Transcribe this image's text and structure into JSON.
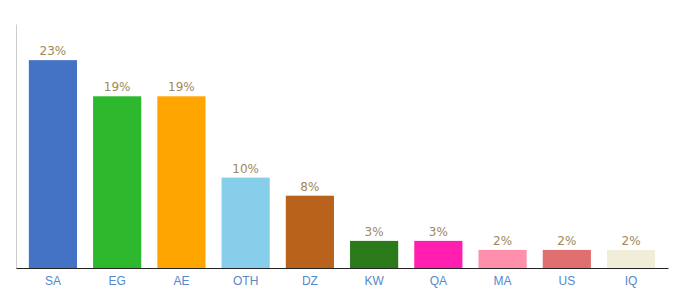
{
  "chart_data": {
    "type": "bar",
    "categories": [
      "SA",
      "EG",
      "AE",
      "OTH",
      "DZ",
      "KW",
      "QA",
      "MA",
      "US",
      "IQ"
    ],
    "values": [
      23,
      19,
      19,
      10,
      8,
      3,
      3,
      2,
      2,
      2
    ],
    "value_labels": [
      "23%",
      "19%",
      "19%",
      "10%",
      "8%",
      "3%",
      "3%",
      "2%",
      "2%",
      "2%"
    ],
    "colors": [
      "#4472C4",
      "#2DB82D",
      "#FFA500",
      "#87CEEB",
      "#B8621B",
      "#2A7A1A",
      "#FF1EB0",
      "#FF8FAB",
      "#E07070",
      "#F0EDD8"
    ],
    "ylim": [
      0,
      27
    ],
    "grid": false,
    "data_labels": true,
    "tick_labels": "x"
  }
}
